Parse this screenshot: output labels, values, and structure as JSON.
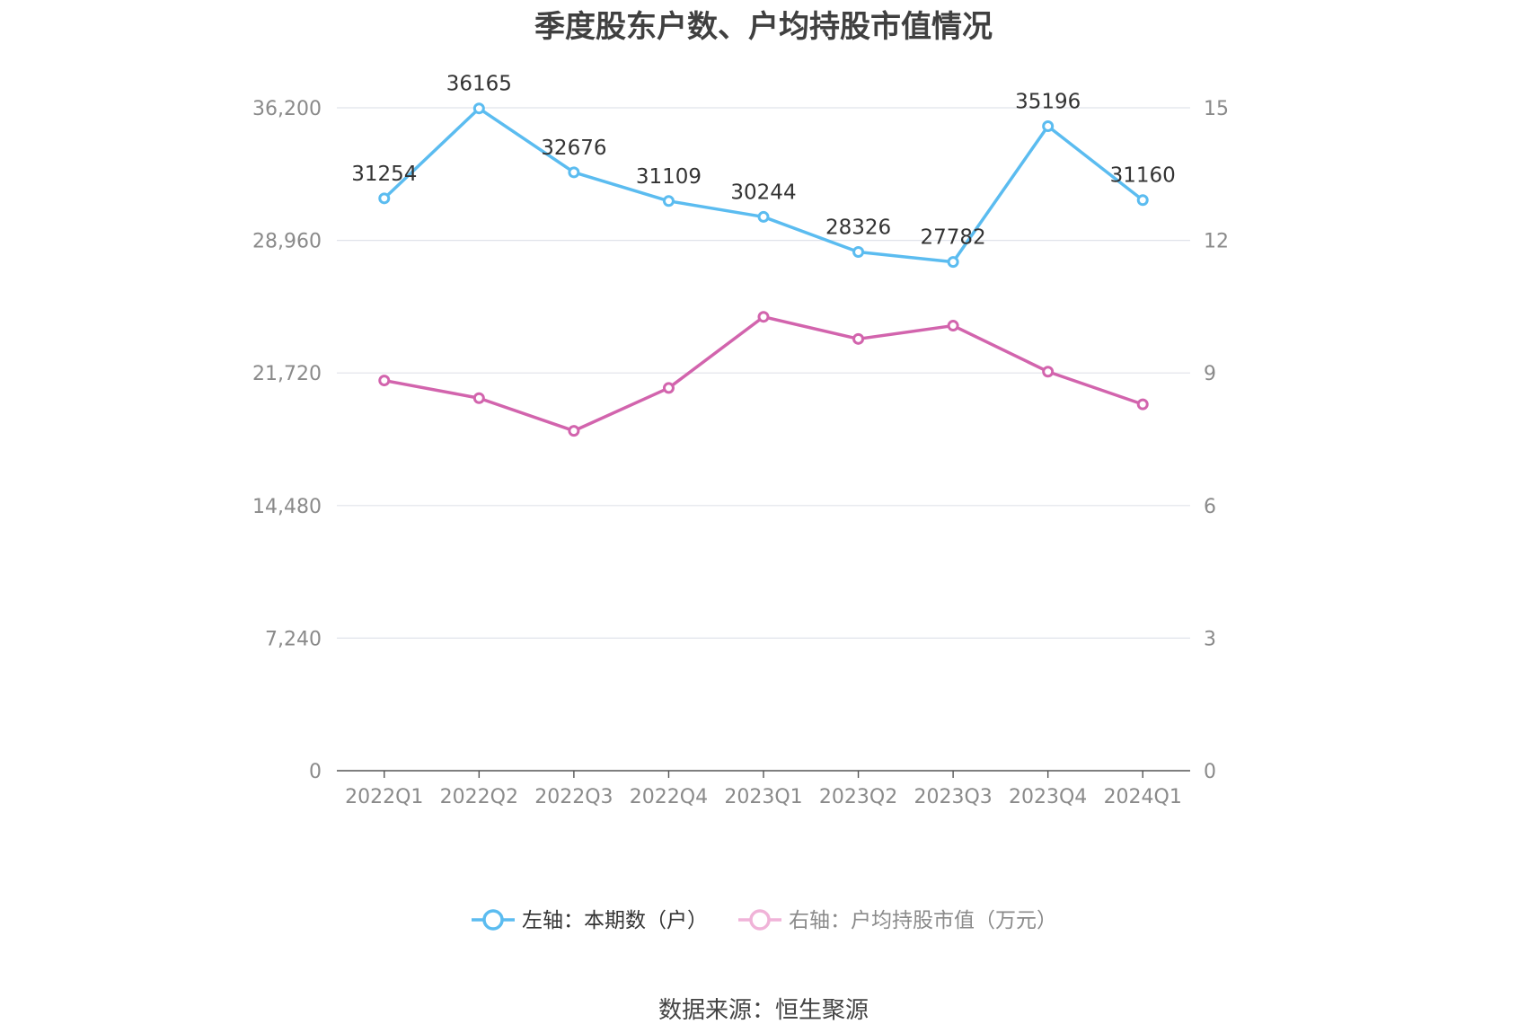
{
  "chart_data": {
    "type": "line",
    "title": "季度股东户数、户均持股市值情况",
    "categories": [
      "2022Q1",
      "2022Q2",
      "2022Q3",
      "2022Q4",
      "2023Q1",
      "2023Q2",
      "2023Q3",
      "2023Q4",
      "2024Q1"
    ],
    "series": [
      {
        "name": "左轴：本期数（户）",
        "axis": "left",
        "color": "#5bbcf0",
        "values": [
          31254,
          36165,
          32676,
          31109,
          30244,
          28326,
          27782,
          35196,
          31160
        ],
        "data_labels": [
          "31254",
          "36165",
          "32676",
          "31109",
          "30244",
          "28326",
          "27782",
          "35196",
          "31160"
        ]
      },
      {
        "name": "右轴：户均持股市值（万元）",
        "axis": "right",
        "color": "#d264ad",
        "values": [
          8.83,
          8.43,
          7.69,
          8.66,
          10.27,
          9.77,
          10.07,
          9.03,
          8.29
        ]
      }
    ],
    "y_left": {
      "min": 0,
      "max": 36200,
      "ticks": [
        "0",
        "7,240",
        "14,480",
        "21,720",
        "28,960",
        "36,200"
      ]
    },
    "y_right": {
      "min": 0,
      "max": 15,
      "ticks": [
        "0",
        "3",
        "6",
        "9",
        "12",
        "15"
      ]
    },
    "grid": true,
    "legend_position": "bottom-center"
  },
  "source": "数据来源：恒生聚源"
}
